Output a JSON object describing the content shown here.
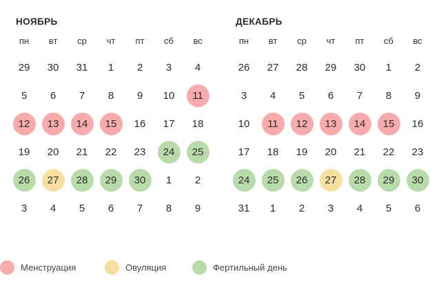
{
  "weekdays": [
    "пн",
    "вт",
    "ср",
    "чт",
    "пт",
    "сб",
    "вс"
  ],
  "colors": {
    "menstruation": "#f7abab",
    "ovulation": "#f7dfa0",
    "fertile": "#b8dca9"
  },
  "months": [
    {
      "id": "nov",
      "title": "НОЯБРЬ",
      "days": [
        {
          "d": "29"
        },
        {
          "d": "30"
        },
        {
          "d": "31"
        },
        {
          "d": "1"
        },
        {
          "d": "2"
        },
        {
          "d": "3"
        },
        {
          "d": "4"
        },
        {
          "d": "5"
        },
        {
          "d": "6"
        },
        {
          "d": "7"
        },
        {
          "d": "8"
        },
        {
          "d": "9"
        },
        {
          "d": "10"
        },
        {
          "d": "11",
          "t": "m"
        },
        {
          "d": "12",
          "t": "m"
        },
        {
          "d": "13",
          "t": "m"
        },
        {
          "d": "14",
          "t": "m"
        },
        {
          "d": "15",
          "t": "m"
        },
        {
          "d": "16"
        },
        {
          "d": "17"
        },
        {
          "d": "18"
        },
        {
          "d": "19"
        },
        {
          "d": "20"
        },
        {
          "d": "21"
        },
        {
          "d": "22"
        },
        {
          "d": "23"
        },
        {
          "d": "24",
          "t": "f"
        },
        {
          "d": "25",
          "t": "f"
        },
        {
          "d": "26",
          "t": "f"
        },
        {
          "d": "27",
          "t": "o"
        },
        {
          "d": "28",
          "t": "f"
        },
        {
          "d": "29",
          "t": "f"
        },
        {
          "d": "30",
          "t": "f"
        },
        {
          "d": "1"
        },
        {
          "d": "2"
        },
        {
          "d": "3"
        },
        {
          "d": "4"
        },
        {
          "d": "5"
        },
        {
          "d": "6"
        },
        {
          "d": "7"
        },
        {
          "d": "8"
        },
        {
          "d": "9"
        }
      ]
    },
    {
      "id": "dec",
      "title": "ДЕКАБРЬ",
      "days": [
        {
          "d": "26"
        },
        {
          "d": "27"
        },
        {
          "d": "28"
        },
        {
          "d": "29"
        },
        {
          "d": "30"
        },
        {
          "d": "1"
        },
        {
          "d": "2"
        },
        {
          "d": "3"
        },
        {
          "d": "4"
        },
        {
          "d": "5"
        },
        {
          "d": "6"
        },
        {
          "d": "7"
        },
        {
          "d": "8"
        },
        {
          "d": "9"
        },
        {
          "d": "10"
        },
        {
          "d": "11",
          "t": "m"
        },
        {
          "d": "12",
          "t": "m"
        },
        {
          "d": "13",
          "t": "m"
        },
        {
          "d": "14",
          "t": "m"
        },
        {
          "d": "15",
          "t": "m"
        },
        {
          "d": "16"
        },
        {
          "d": "17"
        },
        {
          "d": "18"
        },
        {
          "d": "19"
        },
        {
          "d": "20"
        },
        {
          "d": "21"
        },
        {
          "d": "22"
        },
        {
          "d": "23"
        },
        {
          "d": "24",
          "t": "f"
        },
        {
          "d": "25",
          "t": "f"
        },
        {
          "d": "26",
          "t": "f"
        },
        {
          "d": "27",
          "t": "o"
        },
        {
          "d": "28",
          "t": "f"
        },
        {
          "d": "29",
          "t": "f"
        },
        {
          "d": "30",
          "t": "f"
        },
        {
          "d": "31"
        },
        {
          "d": "1"
        },
        {
          "d": "2"
        },
        {
          "d": "3"
        },
        {
          "d": "4"
        },
        {
          "d": "5"
        },
        {
          "d": "6"
        }
      ]
    }
  ],
  "legend": {
    "menstruation": "Менструация",
    "ovulation": "Овуляция",
    "fertile": "Фертильный день"
  }
}
